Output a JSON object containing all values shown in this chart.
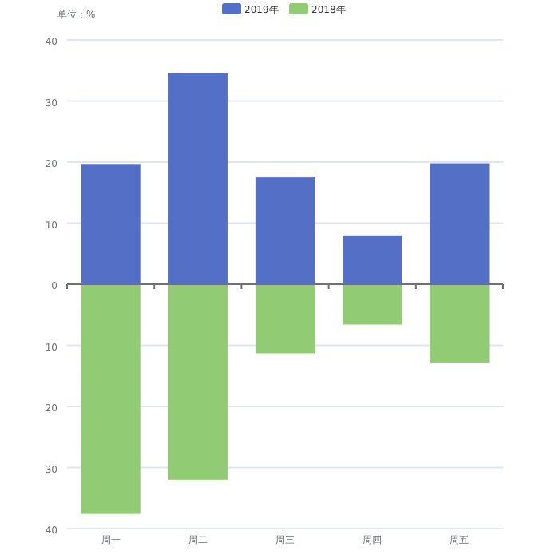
{
  "chart_data": {
    "type": "bar",
    "ylabel": "单位：%",
    "categories": [
      "周一",
      "周二",
      "周三",
      "周四",
      "周五"
    ],
    "stacked": true,
    "series": [
      {
        "name": "2019年",
        "color": "#5470c6",
        "values": [
          19.7,
          34.6,
          17.5,
          8.0,
          19.8
        ]
      },
      {
        "name": "2018年",
        "color": "#91cc75",
        "values": [
          -37.6,
          -32.0,
          -11.3,
          -6.6,
          -12.8
        ]
      }
    ],
    "ylim": [
      -40,
      40
    ],
    "yticks": [
      {
        "value": -40,
        "label": "40"
      },
      {
        "value": -30,
        "label": "30"
      },
      {
        "value": -20,
        "label": "20"
      },
      {
        "value": -10,
        "label": "10"
      },
      0,
      10,
      20,
      30,
      40
    ],
    "grid": "y",
    "legend": "top"
  }
}
